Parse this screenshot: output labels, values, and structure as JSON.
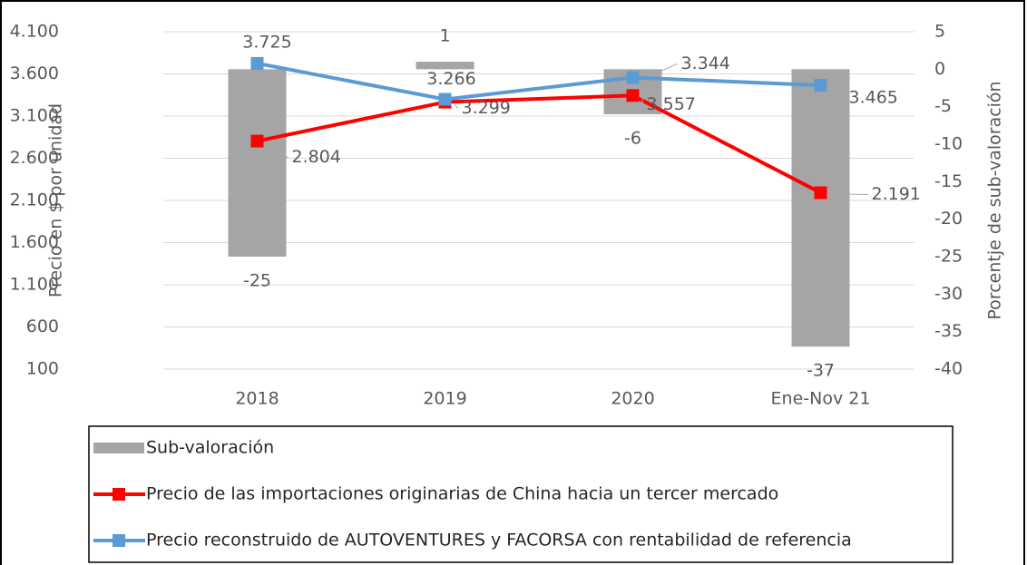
{
  "chart_data": {
    "type": "combo",
    "categories": [
      "2018",
      "2019",
      "2020",
      "Ene-Nov 21"
    ],
    "series": [
      {
        "name": "Sub-valoración",
        "type": "bar",
        "axis": "y2",
        "color": "#a5a5a5",
        "values": [
          -25,
          1,
          -6,
          -37
        ]
      },
      {
        "name": "Precio de las importaciones originarias de China hacia un tercer mercado",
        "type": "line",
        "color": "#ff0000",
        "values": [
          2804,
          3266,
          3344,
          2191
        ],
        "value_labels": [
          "2.804",
          "3.266",
          "3.344",
          "2.191"
        ]
      },
      {
        "name": "Precio reconstruido de AUTOVENTURES y FACORSA con rentabilidad de referencia",
        "type": "line",
        "color": "#5b9bd5",
        "values": [
          3725,
          3299,
          3557,
          3465
        ],
        "value_labels": [
          "3.725",
          "3.299",
          "3.557",
          "3.465"
        ]
      }
    ],
    "ylabel": "Precio en $ por unidad",
    "y2label": "Porcentje de sub-valoración",
    "ylim": [
      100,
      4100
    ],
    "yticks": [
      100,
      600,
      {
        "value": 1100,
        "label": "1.100"
      },
      {
        "value": 1600,
        "label": "1.600"
      },
      {
        "value": 2100,
        "label": "2.100"
      },
      {
        "value": 2600,
        "label": "2.600"
      },
      {
        "value": 3100,
        "label": "3.100"
      },
      {
        "value": 3600,
        "label": "3.600"
      },
      {
        "value": 4100,
        "label": "4.100"
      }
    ],
    "y2lim": [
      -40,
      5
    ],
    "y2ticks": [
      -40,
      -35,
      -30,
      -25,
      -20,
      -15,
      -10,
      -5,
      0,
      5
    ],
    "grid": true,
    "legend": "bottom"
  }
}
